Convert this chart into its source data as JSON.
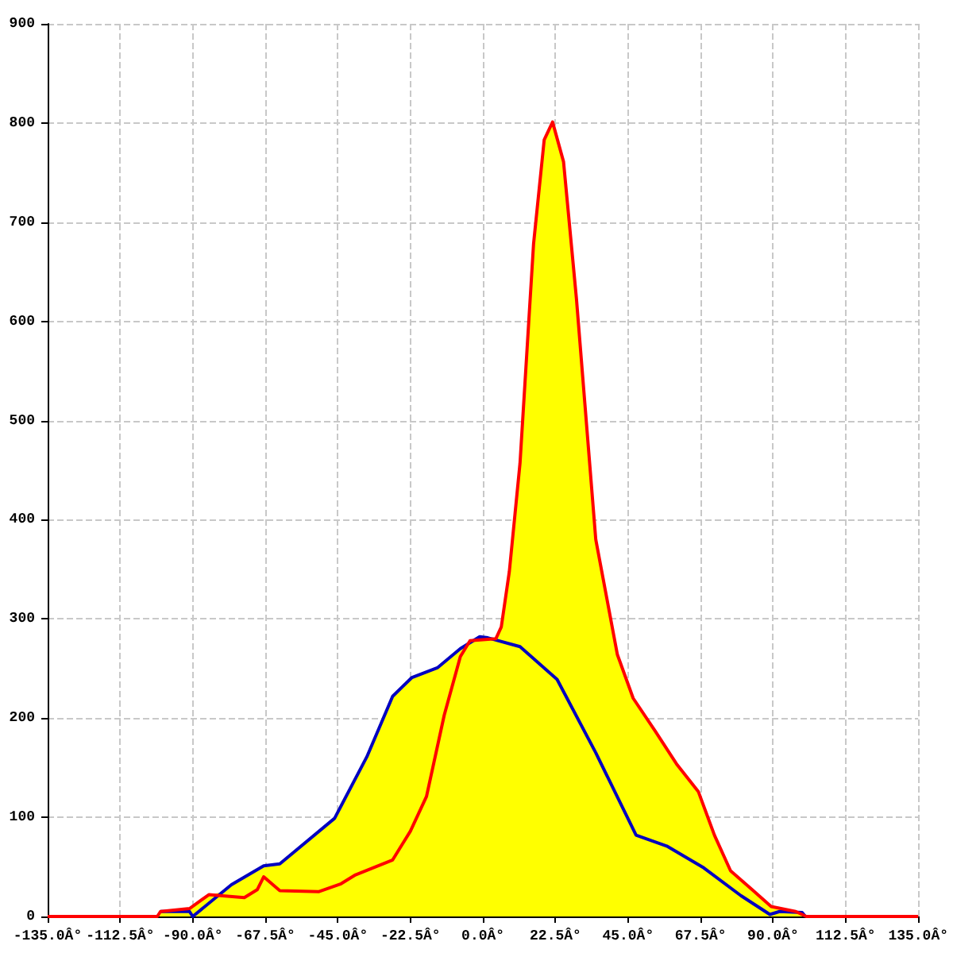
{
  "chart_data": {
    "type": "line",
    "xlim": [
      -135,
      135
    ],
    "ylim": [
      0,
      900
    ],
    "xticks": [
      {
        "value": -135,
        "label": "-135.0Â°"
      },
      {
        "value": -112.5,
        "label": "-112.5Â°"
      },
      {
        "value": -90,
        "label": "-90.0Â°"
      },
      {
        "value": -67.5,
        "label": "-67.5Â°"
      },
      {
        "value": -45,
        "label": "-45.0Â°"
      },
      {
        "value": -22.5,
        "label": "-22.5Â°"
      },
      {
        "value": 0,
        "label": "0.0Â°"
      },
      {
        "value": 22.5,
        "label": "22.5Â°"
      },
      {
        "value": 45,
        "label": "45.0Â°"
      },
      {
        "value": 67.5,
        "label": "67.5Â°"
      },
      {
        "value": 90,
        "label": "90.0Â°"
      },
      {
        "value": 112.5,
        "label": "112.5Â°"
      },
      {
        "value": 135,
        "label": "135.0Â°"
      }
    ],
    "yticks": [
      0,
      100,
      200,
      300,
      400,
      500,
      600,
      700,
      800,
      900
    ],
    "grid": true,
    "marker": "none",
    "line_style": "solid",
    "series": [
      {
        "type": "area",
        "color": "#ffff00",
        "x": [
          -101,
          -100,
          -91,
          -85,
          -81.5,
          -78,
          -68,
          -63,
          -46,
          -36,
          -28,
          -22,
          -14,
          -7,
          -1,
          1.5,
          4,
          5.7,
          8.2,
          11.5,
          15.7,
          19,
          21.6,
          25,
          29,
          35,
          41.7,
          46.6,
          53.4,
          60,
          66.8,
          71.8,
          76.8,
          83.5,
          89.4,
          97,
          100.3
        ],
        "values": [
          0,
          5,
          8,
          22,
          24,
          32,
          51,
          53,
          99,
          161,
          222,
          241,
          251,
          270,
          282,
          281,
          280,
          292,
          348,
          457,
          678,
          783,
          801,
          761,
          623,
          380,
          264,
          220,
          187,
          154,
          126,
          82,
          46,
          27,
          10,
          5,
          0
        ]
      },
      {
        "color": "#0000c0",
        "x": [
          -100,
          -91,
          -90,
          -78,
          -68,
          -63,
          -46,
          -36,
          -28,
          -22,
          -14,
          -7,
          -1,
          1.5,
          11.5,
          23,
          35,
          47.5,
          57,
          68.5,
          80,
          89,
          92,
          99,
          100
        ],
        "values": [
          5,
          5,
          0,
          32,
          51,
          53,
          99,
          161,
          222,
          241,
          251,
          270,
          282,
          281,
          272,
          239,
          165,
          82,
          71,
          49,
          21,
          2,
          5,
          4,
          0
        ]
      },
      {
        "color": "#ff0000",
        "x": [
          -135,
          -101,
          -100,
          -91,
          -85,
          -81.5,
          -74,
          -70,
          -68,
          -63,
          -51,
          -44,
          -39.5,
          -28,
          -22.5,
          -17.5,
          -12,
          -7,
          -4,
          4,
          5.7,
          8.2,
          11.5,
          15.7,
          19,
          21.6,
          25,
          29,
          35,
          41.7,
          46.6,
          53.4,
          60,
          66.8,
          71.8,
          76.8,
          83.5,
          89.4,
          97,
          100.3,
          135
        ],
        "values": [
          0,
          0,
          5,
          8,
          22,
          21,
          19,
          27,
          40,
          26,
          25,
          33,
          42,
          57,
          86,
          121,
          203,
          262,
          278,
          280,
          292,
          348,
          457,
          678,
          783,
          801,
          761,
          623,
          380,
          264,
          220,
          187,
          154,
          126,
          82,
          46,
          27,
          10,
          5,
          0,
          0
        ]
      }
    ]
  }
}
